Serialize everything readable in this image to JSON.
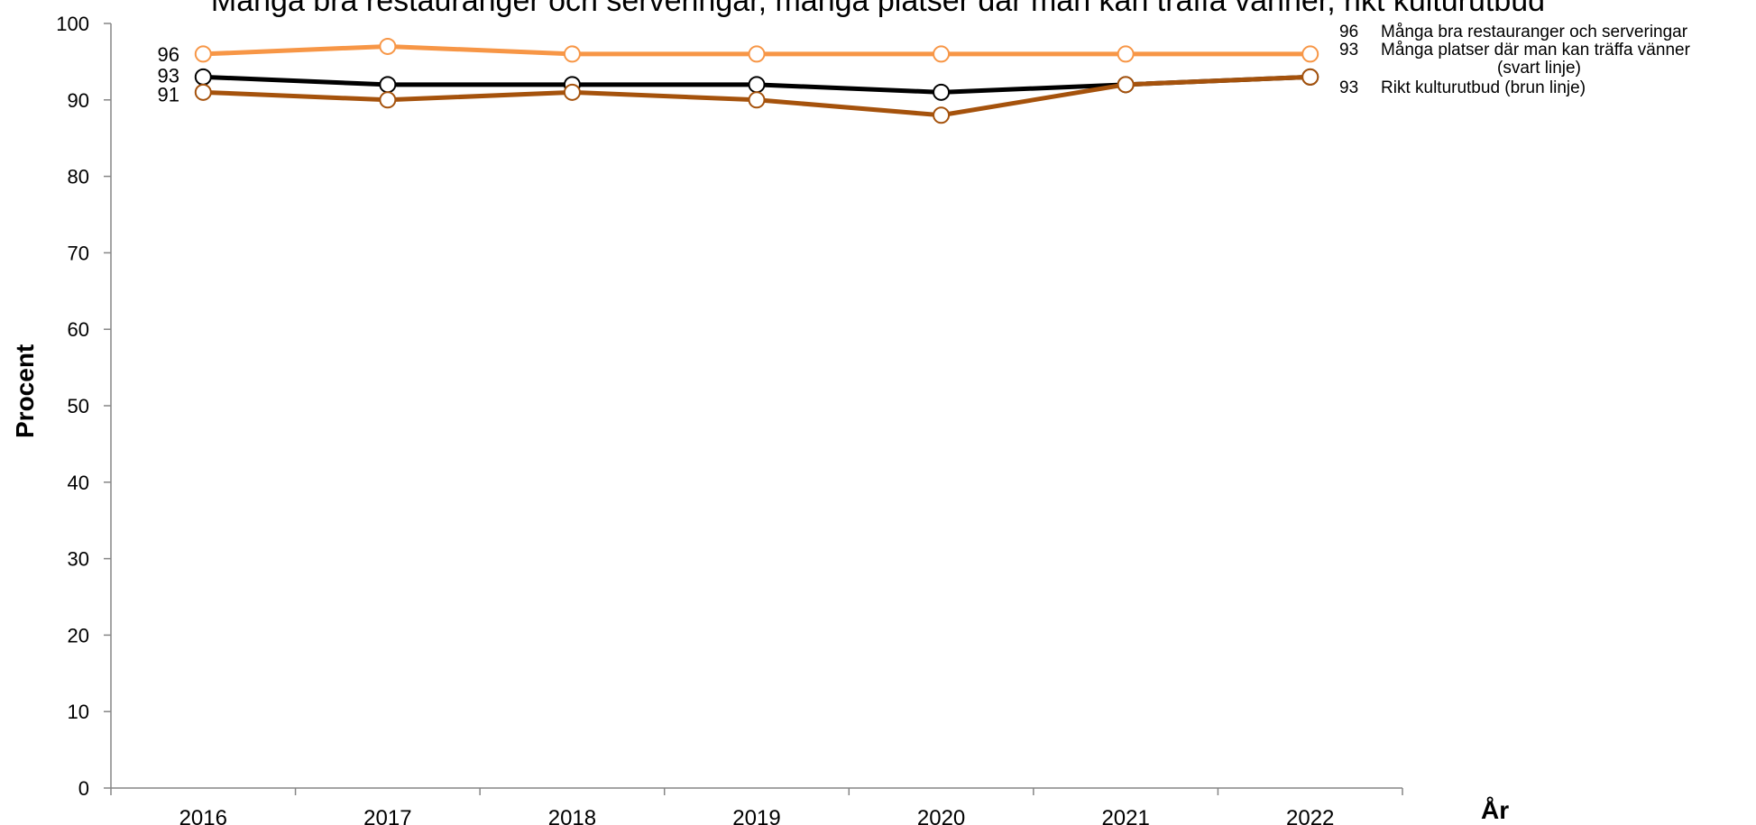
{
  "chart_data": {
    "type": "line",
    "title": "Många bra restauranger och serveringar, många platser där man kan träffa vänner, rikt kulturutbud",
    "xlabel": "År",
    "ylabel": "Procent",
    "ylim": [
      0,
      100
    ],
    "yticks": [
      0,
      10,
      20,
      30,
      40,
      50,
      60,
      70,
      80,
      90,
      100
    ],
    "categories": [
      "2016",
      "2017",
      "2018",
      "2019",
      "2020",
      "2021",
      "2022"
    ],
    "grid": false,
    "legend_position": "top-right",
    "series": [
      {
        "key": "restaurants",
        "color": "#F79646",
        "values": [
          96,
          97,
          96,
          96,
          96,
          96,
          96
        ],
        "start_label": "96"
      },
      {
        "key": "meeting_places",
        "color": "#000000",
        "values": [
          93,
          92,
          92,
          92,
          91,
          92,
          93
        ],
        "start_label": "93"
      },
      {
        "key": "culture",
        "color": "#A5520C",
        "values": [
          91,
          90,
          91,
          90,
          88,
          92,
          93
        ],
        "start_label": "91"
      }
    ],
    "legend": [
      {
        "value": "96",
        "text": "Många bra  restauranger och serveringar"
      },
      {
        "value": "93",
        "text": "Många platser där man kan träffa vänner",
        "sub": "(svart linje)"
      },
      {
        "value": "93",
        "text": "Rikt kulturutbud (brun linje)"
      }
    ]
  }
}
